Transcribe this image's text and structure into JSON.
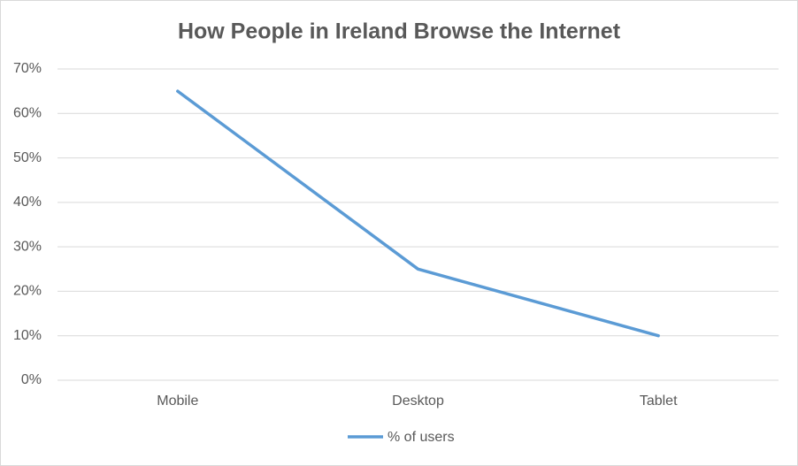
{
  "chart_data": {
    "type": "line",
    "title": "How People in Ireland Browse the Internet",
    "categories": [
      "Mobile",
      "Desktop",
      "Tablet"
    ],
    "series": [
      {
        "name": "% of users",
        "color": "#5b9bd5",
        "values": [
          65,
          25,
          10
        ]
      }
    ],
    "ylim": [
      0,
      70
    ],
    "yticks": [
      {
        "value": 0,
        "label": "0%"
      },
      {
        "value": 10,
        "label": "10%"
      },
      {
        "value": 20,
        "label": "20%"
      },
      {
        "value": 30,
        "label": "30%"
      },
      {
        "value": 40,
        "label": "40%"
      },
      {
        "value": 50,
        "label": "50%"
      },
      {
        "value": 60,
        "label": "60%"
      },
      {
        "value": 70,
        "label": "70%"
      }
    ],
    "grid": true,
    "legend": "bottom"
  }
}
